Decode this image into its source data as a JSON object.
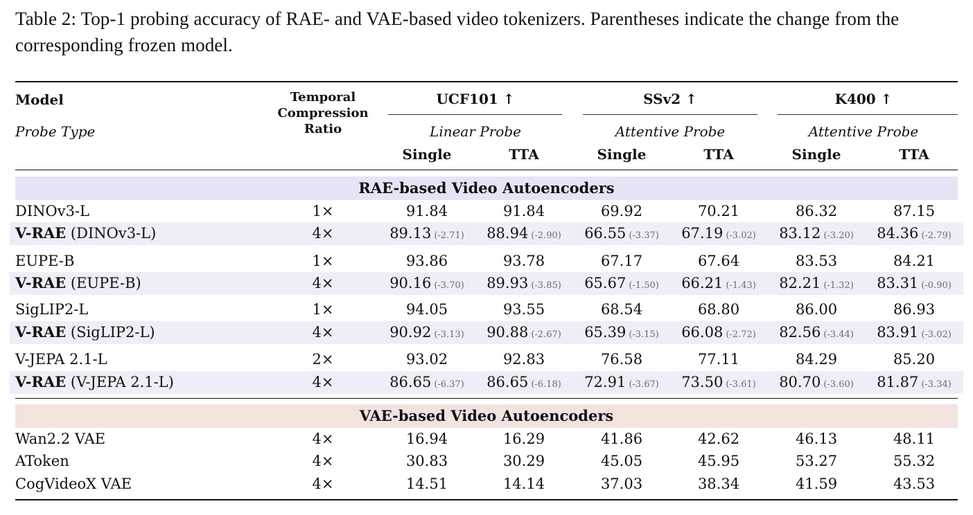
{
  "caption": "Table 2: Top-1 probing accuracy of RAE- and VAE-based video tokenizers. Parentheses indicate the change from the corresponding frozen model.",
  "header": {
    "model": "Model",
    "probe_type": "Probe Type",
    "tcr_lines": [
      "Temporal",
      "Compression",
      "Ratio"
    ],
    "datasets": [
      {
        "name": "UCF101 ↑",
        "probe": "Linear Probe"
      },
      {
        "name": "SSv2 ↑",
        "probe": "Attentive Probe"
      },
      {
        "name": "K400 ↑",
        "probe": "Attentive Probe"
      }
    ],
    "single": "Single",
    "tta": "TTA"
  },
  "sections": [
    {
      "title": "RAE-based Video Autoencoders",
      "rows": [
        {
          "bold": "",
          "name": "DINOv3-L",
          "ratio": "1×",
          "vals": [
            "91.84",
            "91.84",
            "69.92",
            "70.21",
            "86.32",
            "87.15"
          ],
          "deltas": [
            "",
            "",
            "",
            "",
            "",
            ""
          ]
        },
        {
          "bold": "V-RAE",
          "name": " (DINOv3-L)",
          "ratio": "4×",
          "vals": [
            "89.13",
            "88.94",
            "66.55",
            "67.19",
            "83.12",
            "84.36"
          ],
          "deltas": [
            "(-2.71)",
            "(-2.90)",
            "(-3.37)",
            "(-3.02)",
            "(-3.20)",
            "(-2.79)"
          ]
        },
        {
          "bold": "",
          "name": "EUPE-B",
          "ratio": "1×",
          "vals": [
            "93.86",
            "93.78",
            "67.17",
            "67.64",
            "83.53",
            "84.21"
          ],
          "deltas": [
            "",
            "",
            "",
            "",
            "",
            ""
          ]
        },
        {
          "bold": "V-RAE",
          "name": " (EUPE-B)",
          "ratio": "4×",
          "vals": [
            "90.16",
            "89.93",
            "65.67",
            "66.21",
            "82.21",
            "83.31"
          ],
          "deltas": [
            "(-3.70)",
            "(-3.85)",
            "(-1.50)",
            "(-1.43)",
            "(-1.32)",
            "(-0.90)"
          ]
        },
        {
          "bold": "",
          "name": "SigLIP2-L",
          "ratio": "1×",
          "vals": [
            "94.05",
            "93.55",
            "68.54",
            "68.80",
            "86.00",
            "86.93"
          ],
          "deltas": [
            "",
            "",
            "",
            "",
            "",
            ""
          ]
        },
        {
          "bold": "V-RAE",
          "name": " (SigLIP2-L)",
          "ratio": "4×",
          "vals": [
            "90.92",
            "90.88",
            "65.39",
            "66.08",
            "82.56",
            "83.91"
          ],
          "deltas": [
            "(-3.13)",
            "(-2.67)",
            "(-3.15)",
            "(-2.72)",
            "(-3.44)",
            "(-3.02)"
          ]
        },
        {
          "bold": "",
          "name": "V-JEPA 2.1-L",
          "ratio": "2×",
          "vals": [
            "93.02",
            "92.83",
            "76.58",
            "77.11",
            "84.29",
            "85.20"
          ],
          "deltas": [
            "",
            "",
            "",
            "",
            "",
            ""
          ]
        },
        {
          "bold": "V-RAE",
          "name": " (V-JEPA 2.1-L)",
          "ratio": "4×",
          "vals": [
            "86.65",
            "86.65",
            "72.91",
            "73.50",
            "80.70",
            "81.87"
          ],
          "deltas": [
            "(-6.37)",
            "(-6.18)",
            "(-3.67)",
            "(-3.61)",
            "(-3.60)",
            "(-3.34)"
          ]
        }
      ]
    },
    {
      "title": "VAE-based Video Autoencoders",
      "rows": [
        {
          "bold": "",
          "name": "Wan2.2 VAE",
          "ratio": "4×",
          "vals": [
            "16.94",
            "16.29",
            "41.86",
            "42.62",
            "46.13",
            "48.11"
          ],
          "deltas": [
            "",
            "",
            "",
            "",
            "",
            ""
          ]
        },
        {
          "bold": "",
          "name": "AToken",
          "ratio": "4×",
          "vals": [
            "30.83",
            "30.29",
            "45.05",
            "45.95",
            "53.27",
            "55.32"
          ],
          "deltas": [
            "",
            "",
            "",
            "",
            "",
            ""
          ]
        },
        {
          "bold": "",
          "name": "CogVideoX VAE",
          "ratio": "4×",
          "vals": [
            "14.51",
            "14.14",
            "37.03",
            "38.34",
            "41.59",
            "43.53"
          ],
          "deltas": [
            "",
            "",
            "",
            "",
            "",
            ""
          ]
        }
      ]
    }
  ]
}
